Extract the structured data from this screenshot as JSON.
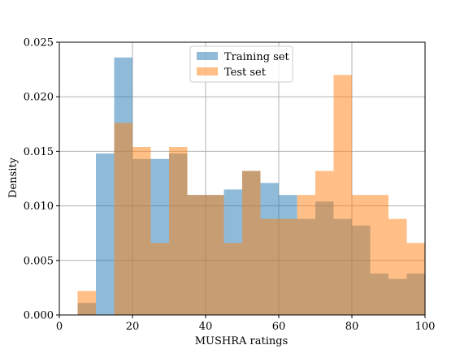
{
  "chart_data": {
    "type": "bar",
    "subtype": "overlapping-histogram",
    "title": "",
    "xlabel": "MUSHRA ratings",
    "ylabel": "Density",
    "xlim": [
      0,
      100
    ],
    "ylim": [
      0,
      0.025
    ],
    "xticks": [
      0,
      20,
      40,
      60,
      80,
      100
    ],
    "xtick_labels": [
      "0",
      "20",
      "40",
      "60",
      "80",
      "100"
    ],
    "yticks": [
      0,
      0.005,
      0.01,
      0.015,
      0.02,
      0.025
    ],
    "ytick_labels": [
      "0.000",
      "0.005",
      "0.010",
      "0.015",
      "0.020",
      "0.025"
    ],
    "grid": true,
    "legend_position": "top-center",
    "bin_edges": [
      5,
      10,
      15,
      20,
      25,
      30,
      35,
      40,
      45,
      50,
      55,
      60,
      65,
      70,
      75,
      80,
      85,
      90,
      95,
      100
    ],
    "series": [
      {
        "name": "Training set",
        "color": "#1f77b4",
        "alpha": 0.5,
        "values": [
          0.0011,
          0.0148,
          0.0236,
          0.0143,
          0.0143,
          0.0148,
          0.011,
          0.011,
          0.0115,
          0.0132,
          0.0121,
          0.011,
          0.0088,
          0.0104,
          0.0088,
          0.0082,
          0.0038,
          0.0033,
          0.0038
        ]
      },
      {
        "name": "Test set",
        "color": "#ff7f0e",
        "alpha": 0.5,
        "values": [
          0.0022,
          0.0,
          0.0176,
          0.0154,
          0.0066,
          0.0154,
          0.011,
          0.011,
          0.0066,
          0.0132,
          0.0088,
          0.0088,
          0.011,
          0.0132,
          0.022,
          0.011,
          0.011,
          0.0088,
          0.0066
        ]
      }
    ]
  }
}
